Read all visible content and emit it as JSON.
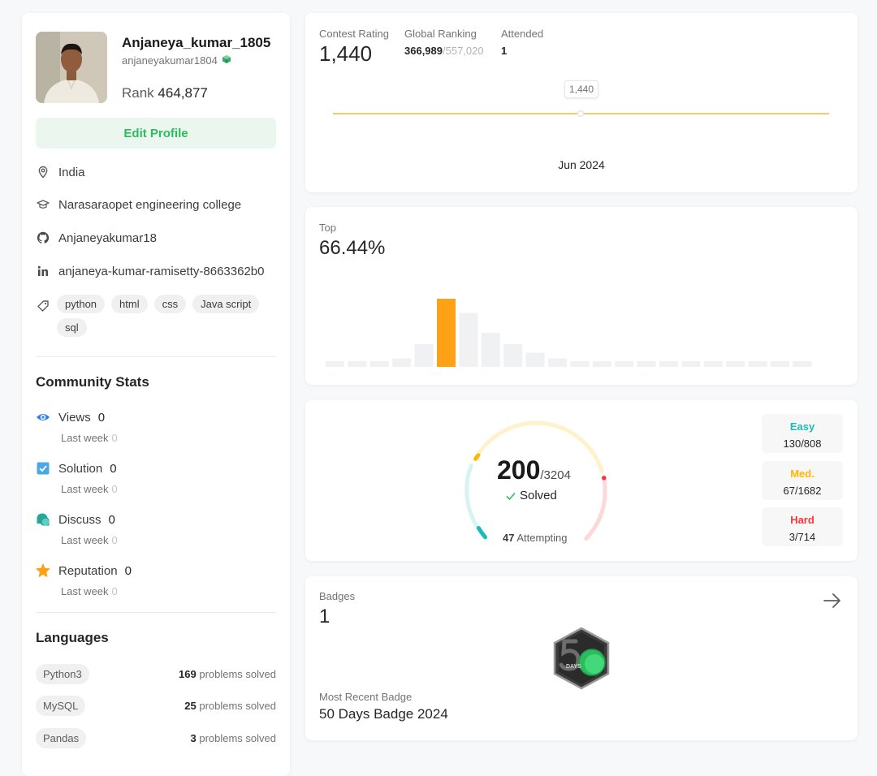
{
  "profile": {
    "display_name": "Anjaneya_kumar_1805",
    "handle": "anjaneyakumar1804",
    "rank_label": "Rank",
    "rank_value": "464,877",
    "edit_button": "Edit Profile",
    "location": "India",
    "college": "Narasaraopet engineering college",
    "github": "Anjaneyakumar18",
    "linkedin": "anjaneya-kumar-ramisetty-8663362b0",
    "tags": [
      "python",
      "html",
      "css",
      "Java script",
      "sql"
    ]
  },
  "community": {
    "title": "Community Stats",
    "stats": [
      {
        "label": "Views",
        "value": "0",
        "sub": "Last week",
        "sub_value": "0"
      },
      {
        "label": "Solution",
        "value": "0",
        "sub": "Last week",
        "sub_value": "0"
      },
      {
        "label": "Discuss",
        "value": "0",
        "sub": "Last week",
        "sub_value": "0"
      },
      {
        "label": "Reputation",
        "value": "0",
        "sub": "Last week",
        "sub_value": "0"
      }
    ]
  },
  "languages": {
    "title": "Languages",
    "items": [
      {
        "name": "Python3",
        "count": "169",
        "suffix": "problems solved"
      },
      {
        "name": "MySQL",
        "count": "25",
        "suffix": "problems solved"
      },
      {
        "name": "Pandas",
        "count": "3",
        "suffix": "problems solved"
      }
    ]
  },
  "contest": {
    "rating_label": "Contest Rating",
    "rating_value": "1,440",
    "global_label": "Global Ranking",
    "global_value": "366,989",
    "global_total": "/557,020",
    "attended_label": "Attended",
    "attended_value": "1",
    "tooltip": "1,440",
    "x_label": "Jun 2024"
  },
  "top": {
    "label": "Top",
    "value": "66.44%"
  },
  "chart_data": {
    "type": "bar",
    "values": [
      2,
      2,
      2,
      3,
      8,
      24,
      19,
      12,
      8,
      5,
      3,
      2,
      2,
      2,
      2,
      2,
      2,
      2,
      2,
      2,
      2,
      2
    ],
    "highlight_index": 5,
    "xlabel": "",
    "ylabel": ""
  },
  "solved": {
    "count": "200",
    "total": "/3204",
    "solved_label": "Solved",
    "attempting_count": "47",
    "attempting_label": "Attempting",
    "difficulties": [
      {
        "name": "Easy",
        "value": "130/808",
        "color": "#1cbaba",
        "solved": 130,
        "total": 808
      },
      {
        "name": "Med.",
        "value": "67/1682",
        "color": "#ffb700",
        "solved": 67,
        "total": 1682
      },
      {
        "name": "Hard",
        "value": "3/714",
        "color": "#f63737",
        "solved": 3,
        "total": 714
      }
    ]
  },
  "badges": {
    "label": "Badges",
    "count": "1",
    "recent_label": "Most Recent Badge",
    "recent_name": "50 Days Badge 2024",
    "badge_days_text": "DAYS"
  },
  "colors": {
    "accent_green": "#2cbb5d",
    "chart_orange": "#ffa116",
    "easy": "#1cbaba",
    "medium": "#ffb700",
    "hard": "#f63737"
  }
}
